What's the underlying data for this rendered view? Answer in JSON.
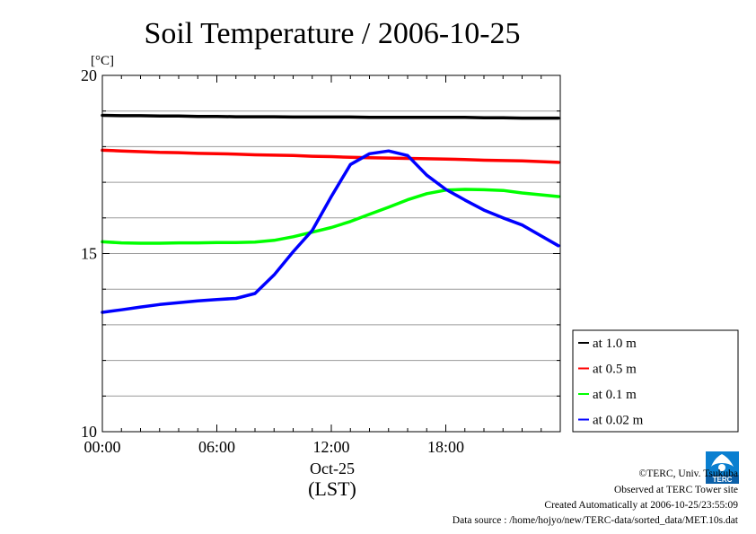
{
  "chart_data": {
    "type": "line",
    "title": "Soil Temperature / 2006-10-25",
    "ylabel": "[°C]",
    "xlabel": "(LST)",
    "x_date_label": "Oct-25",
    "ylim": [
      10,
      20
    ],
    "y_ticks": [
      10,
      15,
      20
    ],
    "y_tick_labels": [
      "10",
      "15",
      "20"
    ],
    "x_hours": [
      0,
      1,
      2,
      3,
      4,
      5,
      6,
      7,
      8,
      9,
      10,
      11,
      12,
      13,
      14,
      15,
      16,
      17,
      18,
      19,
      20,
      21,
      22,
      23.9
    ],
    "x_tick_hours": [
      0,
      6,
      12,
      18
    ],
    "x_tick_labels": [
      "00:00",
      "06:00",
      "12:00",
      "18:00"
    ],
    "grid": true,
    "legend_position": "bottom-right",
    "series": [
      {
        "name": "at 1.0 m",
        "color": "#000000",
        "values": [
          18.88,
          18.87,
          18.87,
          18.86,
          18.86,
          18.85,
          18.85,
          18.84,
          18.84,
          18.84,
          18.83,
          18.83,
          18.83,
          18.83,
          18.82,
          18.82,
          18.82,
          18.82,
          18.82,
          18.82,
          18.81,
          18.81,
          18.8,
          18.8
        ]
      },
      {
        "name": "at 0.5 m",
        "color": "#ff0000",
        "values": [
          17.9,
          17.88,
          17.86,
          17.84,
          17.83,
          17.81,
          17.8,
          17.79,
          17.77,
          17.76,
          17.75,
          17.73,
          17.72,
          17.7,
          17.69,
          17.68,
          17.67,
          17.66,
          17.65,
          17.64,
          17.62,
          17.61,
          17.6,
          17.56
        ]
      },
      {
        "name": "at 0.1 m",
        "color": "#00ff00",
        "values": [
          15.33,
          15.3,
          15.29,
          15.29,
          15.3,
          15.3,
          15.31,
          15.31,
          15.32,
          15.37,
          15.47,
          15.6,
          15.73,
          15.9,
          16.1,
          16.3,
          16.51,
          16.68,
          16.78,
          16.8,
          16.79,
          16.77,
          16.7,
          16.6
        ]
      },
      {
        "name": "at 0.02 m",
        "color": "#0000ff",
        "values": [
          13.35,
          13.42,
          13.5,
          13.57,
          13.62,
          13.67,
          13.71,
          13.74,
          13.88,
          14.4,
          15.05,
          15.65,
          16.6,
          17.5,
          17.8,
          17.88,
          17.75,
          17.2,
          16.8,
          16.5,
          16.22,
          16.0,
          15.8,
          15.22
        ]
      }
    ]
  },
  "credits": {
    "copyright": "©TERC, Univ. Tsukuba",
    "observed": "Observed at TERC Tower site",
    "created": "Created Automatically at 2006-10-25/23:55:09",
    "source": "Data source : /home/hojyo/new/TERC-data/sorted_data/MET.10s.dat",
    "logo_text": "TERC"
  }
}
